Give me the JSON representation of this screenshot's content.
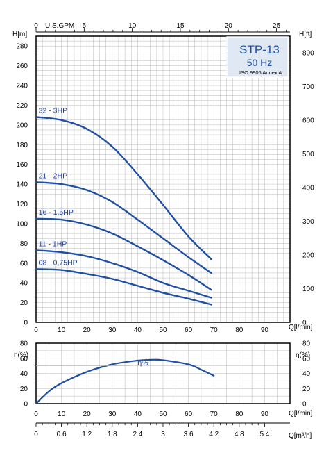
{
  "header": {
    "model": "STP-13",
    "frequency": "50 Hz",
    "standard": "ISO 9906 Annex A"
  },
  "colors": {
    "curve": "#1f4fa0",
    "label": "#1f3f99",
    "grid": "#b9b9b9",
    "frame": "#000000",
    "box_fill": "#dfe8f3"
  },
  "chart_data": [
    {
      "type": "line",
      "title": "",
      "xlabel": "Q[l/min]",
      "ylabel": "H[m]",
      "ylabel_right": "H[ft]",
      "xlabel_top": "U.S.GPM",
      "xlim": [
        0,
        100
      ],
      "ylim": [
        0,
        290
      ],
      "ylim_right": [
        0,
        850
      ],
      "xlim_top_gpm": [
        0,
        26.4
      ],
      "x_ticks": [
        0,
        10,
        20,
        30,
        40,
        50,
        60,
        70,
        80,
        90
      ],
      "y_ticks": [
        0,
        20,
        40,
        60,
        80,
        100,
        120,
        140,
        160,
        180,
        200,
        220,
        240,
        260,
        280
      ],
      "y_ticks_right": [
        0,
        100,
        200,
        300,
        400,
        500,
        600,
        700,
        800
      ],
      "x_ticks_top": [
        0,
        5,
        10,
        15,
        20,
        25
      ],
      "grid": true,
      "series": [
        {
          "name": "32 - 3HP",
          "x": [
            0,
            10,
            20,
            30,
            40,
            50,
            60,
            69
          ],
          "y": [
            208,
            205,
            196,
            178,
            150,
            119,
            87,
            64
          ]
        },
        {
          "name": "21 - 2HP",
          "x": [
            0,
            10,
            20,
            30,
            40,
            50,
            60,
            69
          ],
          "y": [
            142,
            140,
            134,
            122,
            104,
            85,
            66,
            50
          ]
        },
        {
          "name": "16 - 1,5HP",
          "x": [
            0,
            10,
            20,
            30,
            40,
            50,
            60,
            69
          ],
          "y": [
            105,
            104,
            99,
            90,
            77,
            63,
            48,
            33
          ]
        },
        {
          "name": "11 - 1HP",
          "x": [
            0,
            10,
            20,
            30,
            40,
            50,
            60,
            69
          ],
          "y": [
            73,
            71,
            67,
            60,
            51,
            40,
            32,
            25
          ]
        },
        {
          "name": "08 - 0,75HP",
          "x": [
            0,
            10,
            20,
            30,
            40,
            50,
            60,
            69
          ],
          "y": [
            54,
            53,
            49,
            44,
            37,
            30,
            24,
            18
          ]
        }
      ]
    },
    {
      "type": "line",
      "title": "",
      "xlabel": "Q[l/min]",
      "xlabel_bottom": "Q[m³/h]",
      "ylabel": "η(%)",
      "ylabel_right": "η(%)",
      "xlim": [
        0,
        100
      ],
      "ylim": [
        0,
        80
      ],
      "x_ticks": [
        0,
        10,
        20,
        30,
        40,
        50,
        60,
        70,
        80,
        90
      ],
      "y_ticks": [
        0,
        20,
        40,
        60,
        80
      ],
      "x_ticks_m3h": [
        "0",
        "0.6",
        "1.2",
        "1.8",
        "2.4",
        "3",
        "3.6",
        "4.2",
        "4.8",
        "5.4"
      ],
      "grid": true,
      "series": [
        {
          "name": "η%",
          "x": [
            0,
            5,
            10,
            20,
            30,
            40,
            45,
            50,
            60,
            65,
            70
          ],
          "y": [
            0,
            16,
            27,
            42,
            52,
            57,
            58,
            57.5,
            52,
            45,
            37
          ]
        }
      ]
    }
  ]
}
